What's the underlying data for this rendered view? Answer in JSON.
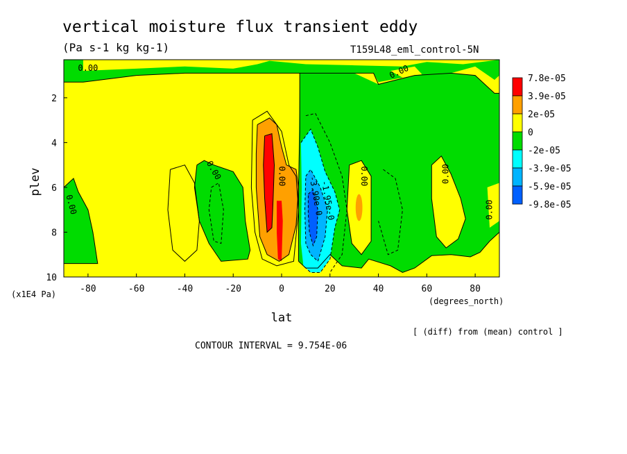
{
  "title": "vertical moisture flux transient eddy",
  "units": "(Pa s-1 kg kg-1)",
  "run_label": "T159L48_eml_control-5N",
  "footer": {
    "diff_note": "[ (diff) from (mean) control ]",
    "contour_interval": "CONTOUR INTERVAL = 9.754E-06"
  },
  "chart_data": {
    "type": "heatmap",
    "xlabel": "lat",
    "xunits": "(degrees_north)",
    "ylabel": "plev",
    "yunits": "(x1E4 Pa)",
    "xlim": [
      -90,
      90
    ],
    "ylim": [
      10,
      0.3
    ],
    "x_ticks": [
      -80,
      -60,
      -40,
      -20,
      0,
      20,
      40,
      60,
      80
    ],
    "y_ticks": [
      2,
      4,
      6,
      8,
      10
    ],
    "colors": {
      "red": "#ff0000",
      "orange": "#ffa000",
      "yellow": "#ffff00",
      "green": "#00dc00",
      "cyan": "#00ffff",
      "lightblue": "#00b4ff",
      "blue": "#0060ff"
    },
    "legend": {
      "placement": "right",
      "levels": [
        "7.8e-05",
        "3.9e-05",
        "2e-05",
        "0",
        "-2e-05",
        "-3.9e-05",
        "-5.9e-05",
        "-9.8e-05"
      ],
      "colors": [
        "#ff0000",
        "#ffa000",
        "#ffff00",
        "#00dc00",
        "#00ffff",
        "#00b4ff",
        "#0060ff"
      ]
    },
    "contour_labels": [
      "0.00",
      "0.00",
      "0.00",
      "0.00",
      "0.00",
      "0.00",
      "0.00",
      "-1.95e-0",
      "-3.90e-0",
      "0.00"
    ]
  }
}
